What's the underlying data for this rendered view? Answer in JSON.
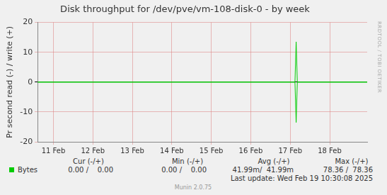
{
  "chart_data": {
    "type": "line",
    "title": "Disk throughput for /dev/pve/vm-108-disk-0 - by week",
    "y_label": "Pr second read (-) / write (+)",
    "side_text": "RRDTOOL / TOBI OETIKER",
    "x": [
      10.6,
      17.12,
      17.15,
      17.18,
      18.95
    ],
    "series": [
      {
        "name": "Bytes",
        "color": "#00cc00",
        "values": [
          0,
          0,
          13.5,
          0,
          0
        ],
        "read_values": [
          0,
          0,
          -13.5,
          0,
          0
        ]
      }
    ],
    "xlim": [
      10.6,
      18.95
    ],
    "xticks": [
      {
        "value": 11,
        "label": "11 Feb"
      },
      {
        "value": 12,
        "label": "12 Feb"
      },
      {
        "value": 13,
        "label": "13 Feb"
      },
      {
        "value": 14,
        "label": "14 Feb"
      },
      {
        "value": 15,
        "label": "15 Feb"
      },
      {
        "value": 16,
        "label": "16 Feb"
      },
      {
        "value": 17,
        "label": "17 Feb"
      },
      {
        "value": 18,
        "label": "18 Feb"
      }
    ],
    "ylim": [
      -20,
      20
    ],
    "yticks": [
      -20,
      -10,
      0,
      10,
      20
    ],
    "grid": true,
    "legend_table": {
      "headers": [
        "Cur (-/+)",
        "Min (-/+)",
        "Avg (-/+)",
        "Max (-/+)"
      ],
      "rows": [
        {
          "name": "Bytes",
          "cells": [
            "0.00 /    0.00",
            "0.00 /    0.00",
            "41.99m/  41.99m",
            "78.36 /  78.36"
          ]
        }
      ]
    },
    "footer": [
      "Last update: Wed Feb 19 10:30:08 2025",
      "Munin 2.0.75"
    ]
  }
}
